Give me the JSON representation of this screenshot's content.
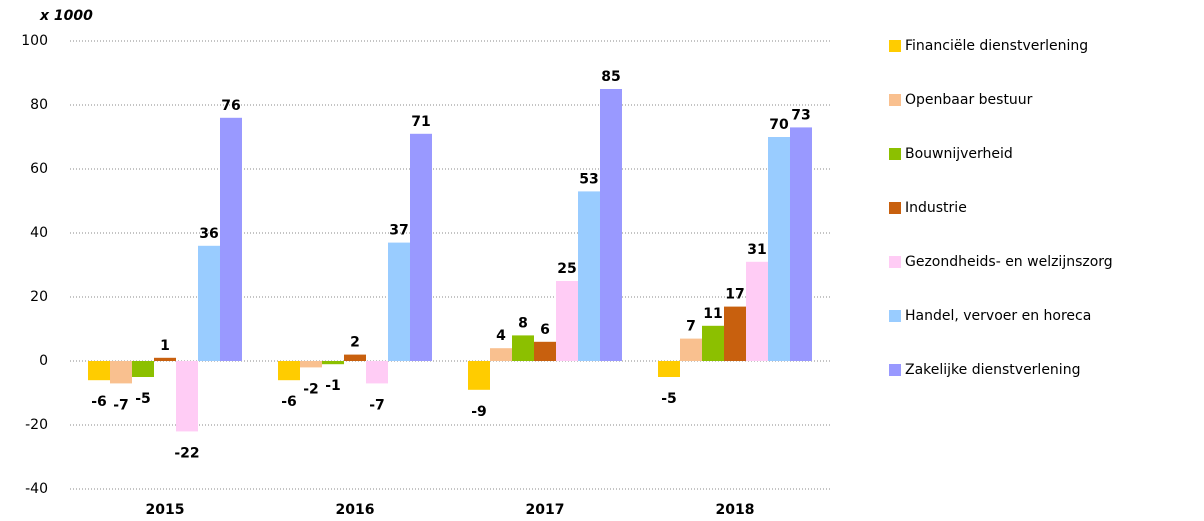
{
  "chart_data": {
    "type": "bar",
    "y_unit_label": "x 1000",
    "categories": [
      "2015",
      "2016",
      "2017",
      "2018"
    ],
    "series": [
      {
        "name": "Financiële dienstverlening",
        "color": "#ffcc00",
        "values": [
          -6,
          -6,
          -9,
          -5
        ]
      },
      {
        "name": "Openbaar bestuur",
        "color": "#f9c08f",
        "values": [
          -7,
          -2,
          4,
          7
        ]
      },
      {
        "name": "Bouwnijverheid",
        "color": "#8cc000",
        "values": [
          -5,
          -1,
          8,
          11
        ]
      },
      {
        "name": "Industrie",
        "color": "#c8600e",
        "values": [
          1,
          2,
          6,
          17
        ]
      },
      {
        "name": "Gezondheids- en welzijnszorg",
        "color": "#ffccf5",
        "values": [
          -22,
          -7,
          25,
          31
        ]
      },
      {
        "name": "Handel, vervoer en horeca",
        "color": "#99ccff",
        "values": [
          36,
          37,
          53,
          70
        ]
      },
      {
        "name": "Zakelijke dienstverlening",
        "color": "#9999ff",
        "values": [
          76,
          71,
          85,
          73
        ]
      }
    ],
    "ylim": [
      -40,
      100
    ],
    "yticks": [
      -40,
      -20,
      0,
      20,
      40,
      60,
      80,
      100
    ],
    "grid": true,
    "legend": "right"
  }
}
